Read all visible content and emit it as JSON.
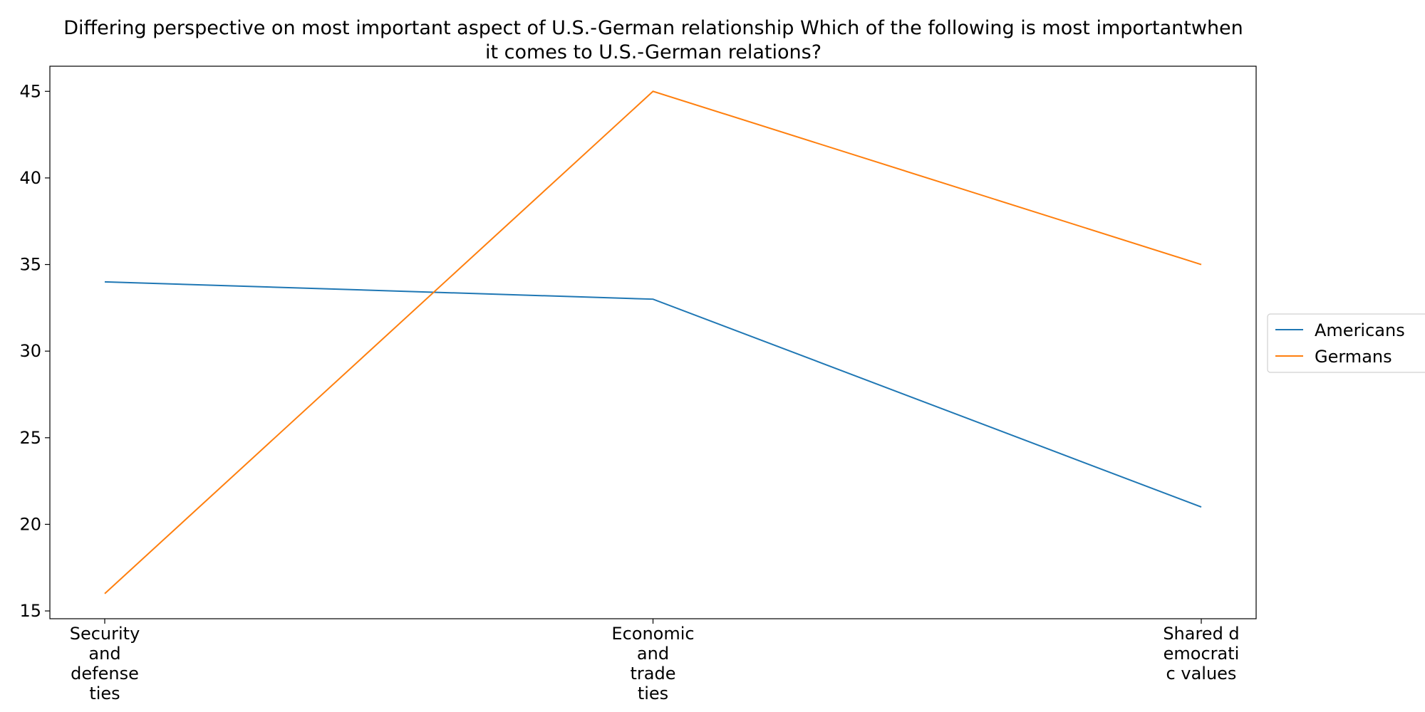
{
  "chart_data": {
    "type": "line",
    "title_lines": [
      "Differing perspective on most important aspect of U.S.-German relationship Which of the following is most importantwhen",
      "it comes to U.S.-German relations?"
    ],
    "categories": [
      [
        "Security",
        "and",
        "defense",
        "ties"
      ],
      [
        "Economic",
        "and",
        "trade",
        "ties"
      ],
      [
        "Shared d",
        "emocrati",
        "c values"
      ]
    ],
    "series": [
      {
        "name": "Americans",
        "values": [
          34,
          33,
          21
        ],
        "color": "#1f77b4"
      },
      {
        "name": "Germans",
        "values": [
          16,
          45,
          35
        ],
        "color": "#ff7f0e"
      }
    ],
    "yticks": [
      15,
      20,
      25,
      30,
      35,
      40,
      45
    ],
    "ylim": [
      14.55,
      46.45
    ],
    "grid": false,
    "legend_position": "center-right outside"
  }
}
